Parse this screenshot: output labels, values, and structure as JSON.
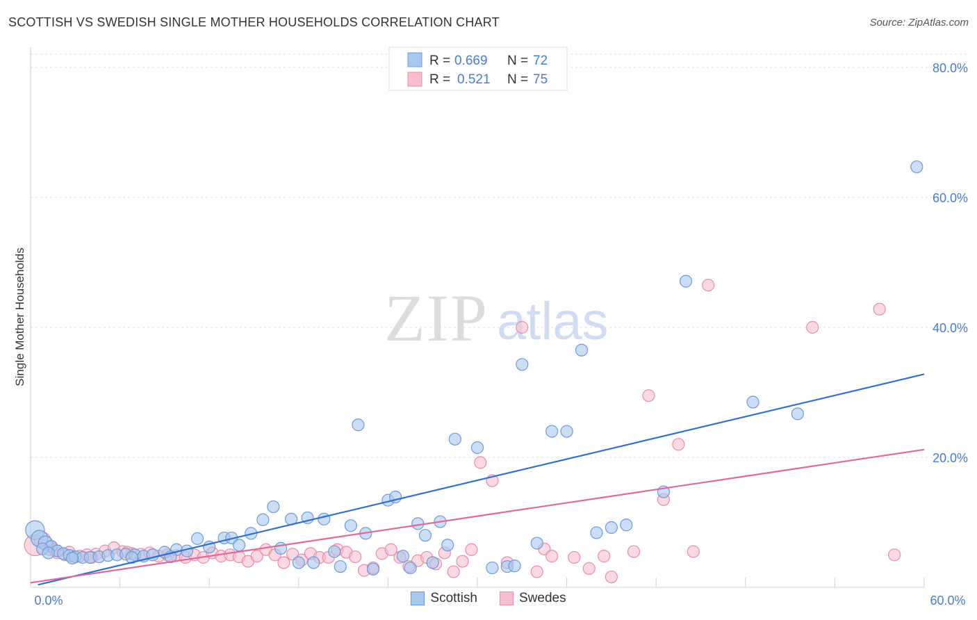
{
  "title": "SCOTTISH VS SWEDISH SINGLE MOTHER HOUSEHOLDS CORRELATION CHART",
  "source": "Source: ZipAtlas.com",
  "watermark": {
    "zip": "ZIP",
    "atlas": "atlas"
  },
  "colors": {
    "blue_fill": "#a9c8f0",
    "blue_stroke": "#6b9ad8",
    "blue_line": "#2f6fce",
    "pink_fill": "#f7bfd0",
    "pink_stroke": "#e98aa8",
    "pink_line": "#e2679a",
    "tick_text": "#4a7ccc",
    "grid": "#dddddd"
  },
  "legend_stats": [
    {
      "r_label": "R =",
      "r_value": "0.669",
      "n_label": "N =",
      "n_value": "72"
    },
    {
      "r_label": "R =",
      "r_value": "0.521",
      "n_label": "N =",
      "n_value": "75"
    }
  ],
  "chart_data": {
    "type": "scatter",
    "title": "SCOTTISH VS SWEDISH SINGLE MOTHER HOUSEHOLDS CORRELATION CHART",
    "xlabel": "",
    "ylabel": "Single Mother Households",
    "xlim": [
      0,
      60
    ],
    "ylim": [
      0,
      80
    ],
    "x_tick_labels": [
      "0.0%",
      "60.0%"
    ],
    "y_tick_labels": [
      {
        "value": 20,
        "label": "20.0%"
      },
      {
        "value": 40,
        "label": "40.0%"
      },
      {
        "value": 60,
        "label": "60.0%"
      },
      {
        "value": 80,
        "label": "80.0%"
      }
    ],
    "series": [
      {
        "name": "Scottish",
        "r": 0.669,
        "n": 72,
        "trend": {
          "x": [
            0.5,
            60
          ],
          "y": [
            0.4,
            32.8
          ]
        },
        "points": [
          [
            0.3,
            8.8,
            1.6
          ],
          [
            0.6,
            7.5,
            1.4
          ],
          [
            1.0,
            6.8,
            1.2
          ],
          [
            1.4,
            6.3,
            1
          ],
          [
            1.8,
            5.6,
            1
          ],
          [
            2.2,
            5.2,
            1
          ],
          [
            2.6,
            4.9,
            1
          ],
          [
            3.0,
            4.7,
            1
          ],
          [
            3.5,
            4.6,
            1
          ],
          [
            4.0,
            4.6,
            1
          ],
          [
            4.6,
            4.7,
            1
          ],
          [
            5.2,
            4.9,
            1
          ],
          [
            5.8,
            5.0,
            1
          ],
          [
            6.4,
            5.1,
            1
          ],
          [
            7.0,
            5.0,
            1
          ],
          [
            7.6,
            4.8,
            1
          ],
          [
            8.2,
            5.0,
            1
          ],
          [
            9.0,
            5.4,
            1
          ],
          [
            9.8,
            5.8,
            1
          ],
          [
            10.5,
            5.6,
            1
          ],
          [
            11.2,
            7.5,
            1
          ],
          [
            12.0,
            6.2,
            1
          ],
          [
            13.0,
            7.6,
            1
          ],
          [
            13.5,
            7.6,
            1
          ],
          [
            14.0,
            6.5,
            1
          ],
          [
            14.8,
            8.3,
            1
          ],
          [
            15.6,
            10.4,
            1
          ],
          [
            16.3,
            12.4,
            1
          ],
          [
            16.8,
            6.0,
            1
          ],
          [
            17.5,
            10.5,
            1
          ],
          [
            18.0,
            3.8,
            1
          ],
          [
            18.6,
            10.7,
            1
          ],
          [
            19.0,
            3.8,
            1
          ],
          [
            19.7,
            10.5,
            1
          ],
          [
            20.4,
            5.5,
            1
          ],
          [
            20.8,
            3.2,
            1
          ],
          [
            21.5,
            9.5,
            1
          ],
          [
            22.0,
            25.0,
            1
          ],
          [
            22.5,
            8.3,
            1
          ],
          [
            23.0,
            2.8,
            1
          ],
          [
            24.0,
            13.4,
            1
          ],
          [
            24.5,
            13.9,
            1
          ],
          [
            25.0,
            4.8,
            1
          ],
          [
            25.5,
            3.0,
            1
          ],
          [
            26.0,
            9.8,
            1
          ],
          [
            26.5,
            8.0,
            1
          ],
          [
            27.0,
            3.8,
            1
          ],
          [
            27.5,
            10.1,
            1
          ],
          [
            28.0,
            6.5,
            1
          ],
          [
            28.5,
            22.8,
            1
          ],
          [
            30.0,
            21.5,
            1
          ],
          [
            31.0,
            3.0,
            1
          ],
          [
            32.0,
            3.2,
            1
          ],
          [
            32.5,
            3.3,
            1
          ],
          [
            33.0,
            34.3,
            1
          ],
          [
            34.0,
            6.8,
            1
          ],
          [
            35.0,
            24.0,
            1
          ],
          [
            36.0,
            24.0,
            1
          ],
          [
            37.0,
            36.5,
            1
          ],
          [
            38.0,
            8.4,
            1
          ],
          [
            39.0,
            9.2,
            1
          ],
          [
            40.0,
            9.6,
            1
          ],
          [
            42.5,
            14.7,
            1
          ],
          [
            44.0,
            47.1,
            1
          ],
          [
            48.5,
            28.5,
            1
          ],
          [
            51.5,
            26.7,
            1
          ],
          [
            59.5,
            64.7,
            1
          ],
          [
            0.8,
            5.9,
            1
          ],
          [
            1.2,
            5.3,
            1
          ],
          [
            2.8,
            4.5,
            1
          ],
          [
            6.8,
            4.6,
            1
          ],
          [
            9.4,
            4.7,
            1
          ]
        ]
      },
      {
        "name": "Swedes",
        "r": 0.521,
        "n": 75,
        "trend": {
          "x": [
            0,
            60
          ],
          "y": [
            0.7,
            21.2
          ]
        },
        "points": [
          [
            0.3,
            6.5,
            1.8
          ],
          [
            0.8,
            7.2,
            1.4
          ],
          [
            1.3,
            6.0,
            1.2
          ],
          [
            1.8,
            5.3,
            1
          ],
          [
            2.3,
            5.0,
            1
          ],
          [
            2.8,
            4.8,
            1
          ],
          [
            3.3,
            4.8,
            1
          ],
          [
            3.8,
            5.0,
            1
          ],
          [
            4.4,
            5.1,
            1
          ],
          [
            5.0,
            5.6,
            1
          ],
          [
            5.6,
            6.1,
            1
          ],
          [
            6.2,
            5.5,
            1
          ],
          [
            6.8,
            5.2,
            1
          ],
          [
            7.4,
            5.1,
            1
          ],
          [
            8.0,
            5.3,
            1
          ],
          [
            8.6,
            4.8,
            1
          ],
          [
            9.2,
            5.0,
            1
          ],
          [
            9.8,
            4.9,
            1
          ],
          [
            10.4,
            4.6,
            1
          ],
          [
            11.0,
            5.0,
            1
          ],
          [
            11.6,
            4.6,
            1
          ],
          [
            12.2,
            5.3,
            1
          ],
          [
            12.8,
            4.8,
            1
          ],
          [
            13.4,
            5.0,
            1
          ],
          [
            14.0,
            4.7,
            1
          ],
          [
            14.6,
            4.0,
            1
          ],
          [
            15.2,
            4.8,
            1
          ],
          [
            15.8,
            5.8,
            1
          ],
          [
            16.4,
            5.0,
            1
          ],
          [
            17.0,
            3.8,
            1
          ],
          [
            17.6,
            5.1,
            1
          ],
          [
            18.2,
            4.2,
            1
          ],
          [
            18.8,
            5.2,
            1
          ],
          [
            19.4,
            4.6,
            1
          ],
          [
            20.0,
            4.6,
            1
          ],
          [
            20.6,
            5.8,
            1
          ],
          [
            21.2,
            5.4,
            1
          ],
          [
            21.8,
            4.7,
            1
          ],
          [
            22.4,
            2.6,
            1
          ],
          [
            23.0,
            3.0,
            1
          ],
          [
            23.6,
            5.2,
            1
          ],
          [
            24.2,
            5.8,
            1
          ],
          [
            24.8,
            4.6,
            1
          ],
          [
            25.4,
            3.2,
            1
          ],
          [
            26.0,
            4.1,
            1
          ],
          [
            26.6,
            4.6,
            1
          ],
          [
            27.2,
            3.6,
            1
          ],
          [
            27.8,
            5.3,
            1
          ],
          [
            28.4,
            2.4,
            1
          ],
          [
            29.0,
            4.0,
            1
          ],
          [
            29.6,
            5.8,
            1
          ],
          [
            30.2,
            19.2,
            1
          ],
          [
            31.0,
            16.4,
            1
          ],
          [
            32.0,
            3.8,
            1
          ],
          [
            33.0,
            40.0,
            1
          ],
          [
            34.0,
            2.4,
            1
          ],
          [
            34.5,
            5.9,
            1
          ],
          [
            35.0,
            4.8,
            1
          ],
          [
            36.5,
            4.6,
            1
          ],
          [
            37.5,
            2.9,
            1
          ],
          [
            38.5,
            4.8,
            1
          ],
          [
            39.0,
            1.6,
            1
          ],
          [
            40.5,
            5.5,
            1
          ],
          [
            41.5,
            29.5,
            1
          ],
          [
            42.5,
            13.5,
            1
          ],
          [
            43.5,
            22.0,
            1
          ],
          [
            44.5,
            5.5,
            1
          ],
          [
            45.5,
            46.5,
            1
          ],
          [
            52.5,
            40.0,
            1
          ],
          [
            57.0,
            42.8,
            1
          ],
          [
            58.0,
            5.0,
            1
          ],
          [
            1.6,
            5.8,
            1
          ],
          [
            2.6,
            5.4,
            1
          ],
          [
            4.1,
            4.6,
            1
          ],
          [
            6.5,
            5.4,
            1
          ]
        ]
      }
    ]
  }
}
